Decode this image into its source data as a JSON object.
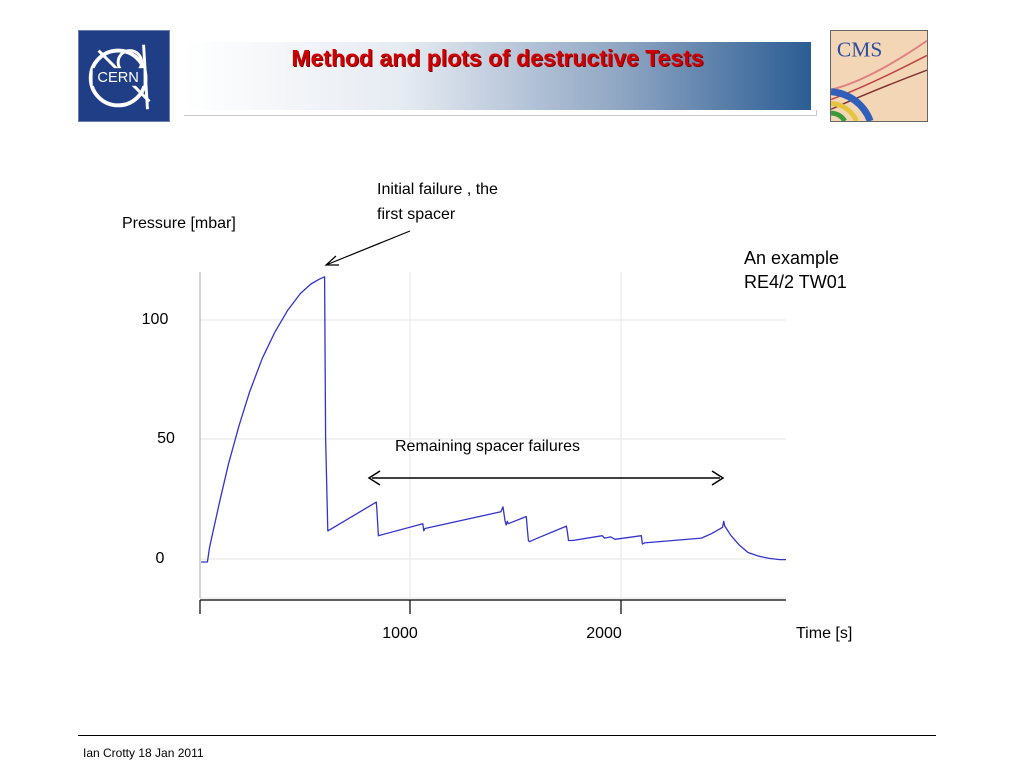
{
  "slide": {
    "title": "Method and plots of destructive Tests",
    "footer": "Ian Crotty  18 Jan  2011",
    "logos": [
      {
        "name": "CERN",
        "text": "CERN",
        "bg_color": "#1f3e86"
      },
      {
        "name": "CMS",
        "text": "CMS",
        "bg_color": "#f6d7b3"
      }
    ]
  },
  "chart_data": {
    "type": "line",
    "title": "",
    "xlabel": "Time [s]",
    "ylabel": "Pressure [mbar]",
    "xlim": [
      -5,
      2770
    ],
    "ylim": [
      -15,
      121
    ],
    "xticks": [
      1000,
      2000
    ],
    "yticks": [
      0,
      50,
      100
    ],
    "grid": true,
    "line_color": "#3333cc",
    "series": [
      {
        "name": "",
        "x": [
          0,
          30,
          40,
          60,
          90,
          130,
          180,
          230,
          290,
          350,
          410,
          470,
          520,
          560,
          585,
          590,
          600,
          830,
          833,
          840,
          1050,
          1055,
          1060,
          1420,
          1430,
          1440,
          1445,
          1450,
          1455,
          1540,
          1545,
          1550,
          1555,
          1580,
          1730,
          1735,
          1740,
          1760,
          1900,
          1910,
          1940,
          1960,
          2085,
          2090,
          2100,
          2370,
          2420,
          2470,
          2475,
          2480,
          2510,
          2550,
          2590,
          2640,
          2690,
          2740,
          2770
        ],
        "y": [
          0,
          0,
          6,
          14,
          26,
          41,
          57,
          71,
          85,
          96,
          105,
          112,
          116,
          118,
          119,
          52,
          13,
          25,
          21,
          11,
          16,
          13,
          14,
          21,
          23,
          17,
          15.5,
          17,
          16,
          19,
          14,
          9,
          8.5,
          9.5,
          15,
          12.5,
          9,
          9,
          11,
          10,
          10.5,
          9.5,
          11,
          7.5,
          8,
          10,
          12,
          14.5,
          17,
          15,
          11,
          7,
          4,
          2.5,
          1.5,
          1,
          1
        ],
        "color": "#3333cc"
      }
    ],
    "annotations": [
      {
        "name": "initial-failure",
        "text": [
          "Initial failure , the",
          "first spacer"
        ],
        "points_to": [
          585,
          119
        ]
      },
      {
        "name": "remaining-failures",
        "text": "Remaining spacer failures",
        "span": [
          790,
          2480
        ],
        "at_y": 34
      },
      {
        "name": "example",
        "text": [
          "An example",
          "RE4/2 TW01"
        ]
      }
    ]
  }
}
